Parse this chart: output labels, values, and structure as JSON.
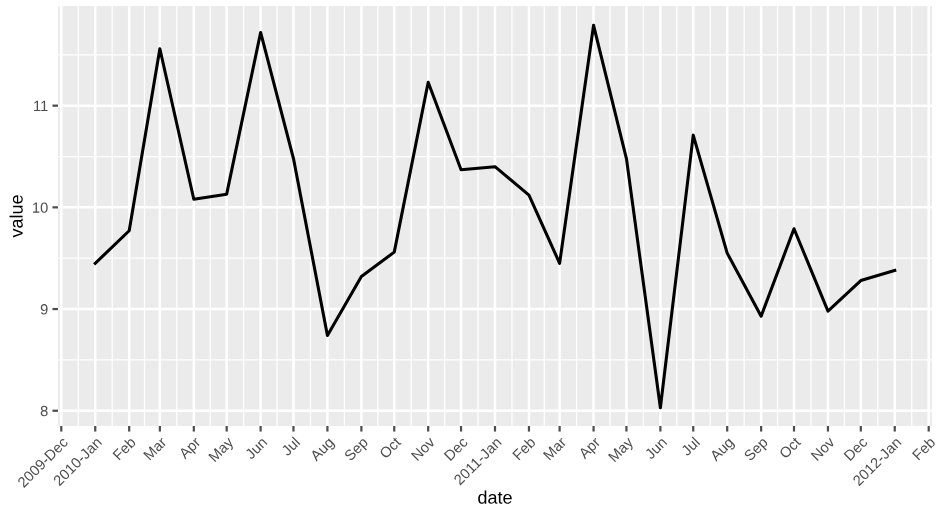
{
  "chart_data": {
    "type": "line",
    "xlabel": "date",
    "ylabel": "value",
    "x": [
      "2010-01-01",
      "2010-02-01",
      "2010-03-01",
      "2010-04-01",
      "2010-05-01",
      "2010-06-01",
      "2010-07-01",
      "2010-08-01",
      "2010-09-01",
      "2010-10-01",
      "2010-11-01",
      "2010-12-01",
      "2011-01-01",
      "2011-02-01",
      "2011-03-01",
      "2011-04-01",
      "2011-05-01",
      "2011-06-01",
      "2011-07-01",
      "2011-08-01",
      "2011-09-01",
      "2011-10-01",
      "2011-11-01",
      "2011-12-01",
      "2012-01-01"
    ],
    "series": [
      {
        "color": "#000000",
        "values": [
          9.45,
          9.77,
          11.56,
          10.08,
          10.13,
          11.72,
          10.48,
          8.74,
          9.32,
          9.56,
          11.23,
          10.37,
          10.4,
          10.12,
          9.45,
          11.79,
          10.48,
          8.03,
          10.71,
          9.55,
          8.93,
          9.79,
          8.98,
          9.28,
          9.38
        ]
      }
    ],
    "xlim": [
      "2009-11-28",
      "2012-02-04"
    ],
    "ylim": [
      7.85,
      11.98
    ],
    "yticks": [
      8,
      9,
      10,
      11
    ],
    "xticks": [
      {
        "value": "2009-12-01",
        "label": "2009-Dec"
      },
      {
        "value": "2010-01-01",
        "label": "2010-Jan"
      },
      {
        "value": "2010-02-01",
        "label": "Feb"
      },
      {
        "value": "2010-03-01",
        "label": "Mar"
      },
      {
        "value": "2010-04-01",
        "label": "Apr"
      },
      {
        "value": "2010-05-01",
        "label": "May"
      },
      {
        "value": "2010-06-01",
        "label": "Jun"
      },
      {
        "value": "2010-07-01",
        "label": "Jul"
      },
      {
        "value": "2010-08-01",
        "label": "Aug"
      },
      {
        "value": "2010-09-01",
        "label": "Sep"
      },
      {
        "value": "2010-10-01",
        "label": "Oct"
      },
      {
        "value": "2010-11-01",
        "label": "Nov"
      },
      {
        "value": "2010-12-01",
        "label": "Dec"
      },
      {
        "value": "2011-01-01",
        "label": "2011-Jan"
      },
      {
        "value": "2011-02-01",
        "label": "Feb"
      },
      {
        "value": "2011-03-01",
        "label": "Mar"
      },
      {
        "value": "2011-04-01",
        "label": "Apr"
      },
      {
        "value": "2011-05-01",
        "label": "May"
      },
      {
        "value": "2011-06-01",
        "label": "Jun"
      },
      {
        "value": "2011-07-01",
        "label": "Jul"
      },
      {
        "value": "2011-08-01",
        "label": "Aug"
      },
      {
        "value": "2011-09-01",
        "label": "Sep"
      },
      {
        "value": "2011-10-01",
        "label": "Oct"
      },
      {
        "value": "2011-11-01",
        "label": "Nov"
      },
      {
        "value": "2011-12-01",
        "label": "Dec"
      },
      {
        "value": "2012-01-01",
        "label": "2012-Jan"
      },
      {
        "value": "2012-02-01",
        "label": "Feb"
      }
    ],
    "grid": true,
    "line_style": "solid"
  }
}
